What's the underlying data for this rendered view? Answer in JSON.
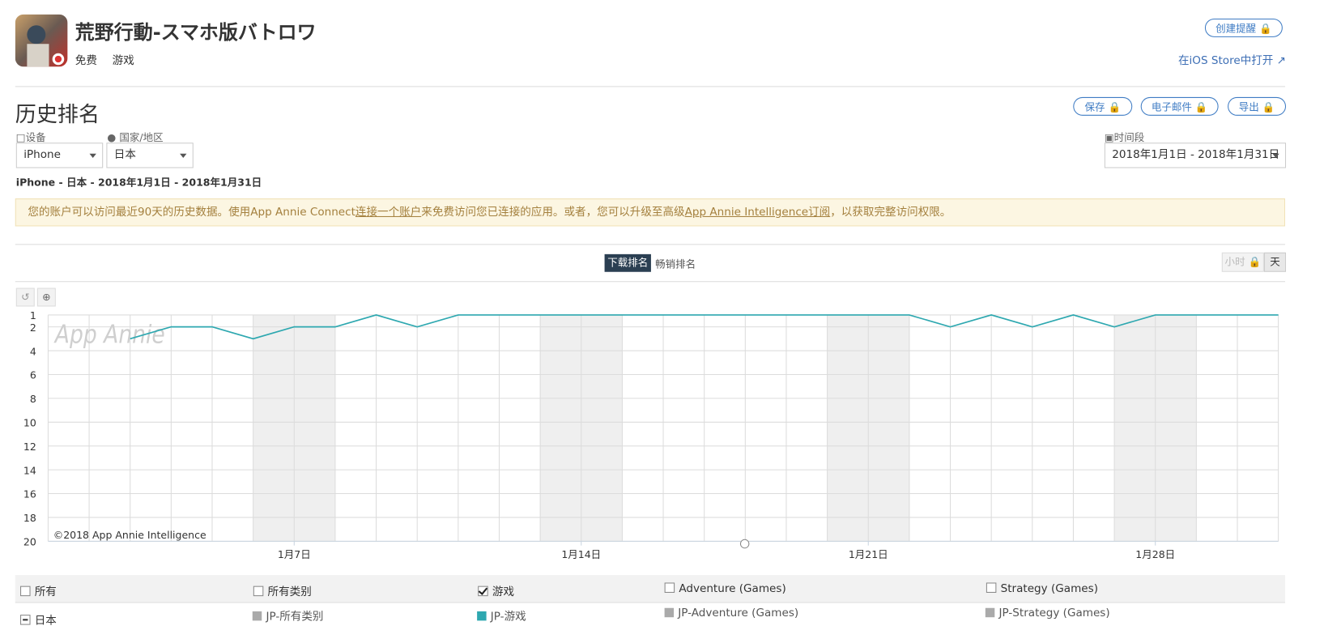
{
  "app": {
    "title": "荒野行動-スマホ版バトロワ",
    "price": "免费",
    "category": "游戏",
    "create_alert": "创建提醒",
    "open_store": "在iOS Store中打开"
  },
  "section": {
    "title": "历史排名",
    "buttons": [
      "保存",
      "电子邮件",
      "导出"
    ]
  },
  "filters": {
    "device_label": "设备",
    "device": "iPhone",
    "country_label": "国家/地区",
    "country": "日本",
    "period_label": "时间段",
    "period": "2018年1月1日 - 2018年1月31日",
    "summary": "iPhone - 日本 - 2018年1月1日 - 2018年1月31日"
  },
  "notice": {
    "text1": "您的账户可以访问最近90天的历史数据。使用App Annie Connect",
    "link1": "连接一个账户",
    "text2": "来免费访问您已连接的应用。或者，您可以升级至高级",
    "link2": "App Annie Intelligence订阅",
    "text3": "，以获取完整访问权限。"
  },
  "tabs": [
    "下载排名",
    "畅销排名"
  ],
  "granularity": [
    "小时",
    "天"
  ],
  "chart_data": {
    "type": "line",
    "watermark": "App Annie",
    "copyright": "©2018 App Annie Intelligence",
    "x": [
      1,
      2,
      3,
      4,
      5,
      6,
      7,
      8,
      9,
      10,
      11,
      12,
      13,
      14,
      15,
      16,
      17,
      18,
      19,
      20,
      21,
      22,
      23,
      24,
      25,
      26,
      27,
      28,
      29,
      30,
      31
    ],
    "series": [
      {
        "name": "JP-游戏",
        "color": "#2ea8b0",
        "values": [
          null,
          null,
          3,
          2,
          2,
          3,
          2,
          2,
          1,
          2,
          1,
          1,
          1,
          1,
          1,
          1,
          1,
          1,
          1,
          1,
          1,
          1,
          2,
          1,
          2,
          1,
          2,
          1,
          1,
          1,
          1
        ]
      }
    ],
    "xlim": [
      1,
      31
    ],
    "xticks": [
      {
        "value": 7,
        "label": "1月7日"
      },
      {
        "value": 14,
        "label": "1月14日"
      },
      {
        "value": 21,
        "label": "1月21日"
      },
      {
        "value": 28,
        "label": "1月28日"
      }
    ],
    "ylim": [
      1,
      20
    ],
    "y_inverted": true,
    "yticks": [
      1,
      2,
      4,
      6,
      8,
      10,
      12,
      14,
      16,
      18,
      20
    ],
    "grid": true,
    "shaded_x_ranges": [
      [
        6,
        8
      ],
      [
        13,
        15
      ],
      [
        20,
        22
      ],
      [
        27,
        29
      ]
    ]
  },
  "filter_table": {
    "header": [
      "所有",
      "所有类别",
      "游戏",
      "Adventure (Games)",
      "Strategy (Games)"
    ],
    "checked": [
      false,
      false,
      true,
      false,
      false
    ],
    "row_label": "日本",
    "row": [
      "JP-所有类别",
      "JP-Adventure (Games)",
      "JP-Strategy (Games)"
    ],
    "row_color": "#aaaaaa"
  }
}
